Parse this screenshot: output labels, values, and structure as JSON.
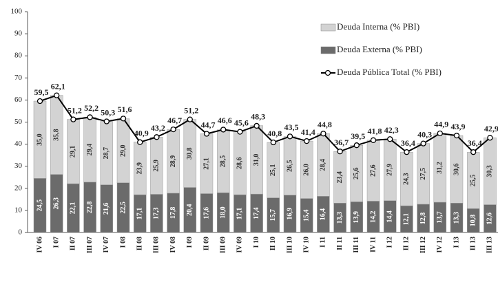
{
  "chart_data": {
    "type": "bar",
    "stacked": true,
    "categories": [
      "IV 06",
      "I 07",
      "II 07",
      "III 07",
      "IV 07",
      "I 08",
      "II 08",
      "III 08",
      "IV 08",
      "I 09",
      "II 09",
      "III 09",
      "IV 09",
      "I 10",
      "II 10",
      "III 10",
      "IV 10",
      "I 11",
      "II 11",
      "III 11",
      "IV 11",
      "I 12",
      "II 12",
      "III 12",
      "IV 12",
      "I 13",
      "II 13",
      "III 13"
    ],
    "series": [
      {
        "name": "Deuda Externa (% PBI)",
        "color": "#6b6b6b",
        "label_color": "#ffffff",
        "values": [
          24.5,
          26.3,
          22.1,
          22.8,
          21.6,
          22.5,
          17.1,
          17.3,
          17.8,
          20.4,
          17.6,
          18.0,
          17.1,
          17.4,
          15.7,
          16.9,
          15.4,
          16.4,
          13.3,
          13.9,
          14.2,
          14.4,
          12.1,
          12.8,
          13.7,
          13.3,
          10.8,
          12.6
        ],
        "value_labels": [
          "24,5",
          "26,3",
          "22,1",
          "22,8",
          "21,6",
          "22,5",
          "17,1",
          "17,3",
          "17,8",
          "20,4",
          "17,6",
          "18,0",
          "17,1",
          "17,4",
          "15,7",
          "16,9",
          "15,4",
          "16,4",
          "13,3",
          "13,9",
          "14,2",
          "14,4",
          "12,1",
          "12,8",
          "13,7",
          "13,3",
          "10,8",
          "12,6"
        ]
      },
      {
        "name": "Deuda Interna (% PBI)",
        "color": "#d3d3d3",
        "label_color": "#333333",
        "values": [
          35.0,
          35.8,
          29.1,
          29.4,
          28.7,
          29.0,
          23.9,
          25.9,
          28.9,
          30.8,
          27.1,
          28.5,
          28.6,
          31.0,
          25.1,
          26.5,
          26.0,
          28.4,
          23.4,
          25.6,
          27.6,
          27.9,
          24.3,
          27.5,
          31.2,
          30.6,
          25.5,
          30.3
        ],
        "value_labels": [
          "35,0",
          "35,8",
          "29,1",
          "29,4",
          "28,7",
          "29,0",
          "23,9",
          "25,9",
          "28,9",
          "30,8",
          "27,1",
          "28,5",
          "28,6",
          "31,0",
          "25,1",
          "26,5",
          "26,0",
          "28,4",
          "23,4",
          "25,6",
          "27,6",
          "27,9",
          "24,3",
          "27,5",
          "31,2",
          "30,6",
          "25,5",
          "30,3"
        ]
      },
      {
        "name": "Deuda Pública Total (% PBI)",
        "type": "line",
        "color": "#000000",
        "values": [
          59.5,
          62.1,
          51.2,
          52.2,
          50.3,
          51.6,
          40.9,
          43.2,
          46.7,
          51.2,
          44.7,
          46.6,
          45.6,
          48.3,
          40.8,
          43.5,
          41.4,
          44.8,
          36.7,
          39.5,
          41.8,
          42.3,
          36.4,
          40.3,
          44.9,
          43.9,
          36.4,
          42.9
        ],
        "value_labels": [
          "59,5",
          "62,1",
          "51,2",
          "52,2",
          "50,3",
          "51,6",
          "40,9",
          "43,2",
          "46,7",
          "51,2",
          "44,7",
          "46,6",
          "45,6",
          "48,3",
          "40,8",
          "43,5",
          "41,4",
          "44,8",
          "36,7",
          "39,5",
          "41,8",
          "42,3",
          "36,4",
          "40,3",
          "44,9",
          "43,9",
          "36,4",
          "42,9"
        ]
      }
    ],
    "ylim": [
      0,
      100
    ],
    "yticks": [
      0,
      10,
      20,
      30,
      40,
      50,
      60,
      70,
      80,
      90,
      100
    ],
    "grid": false
  }
}
